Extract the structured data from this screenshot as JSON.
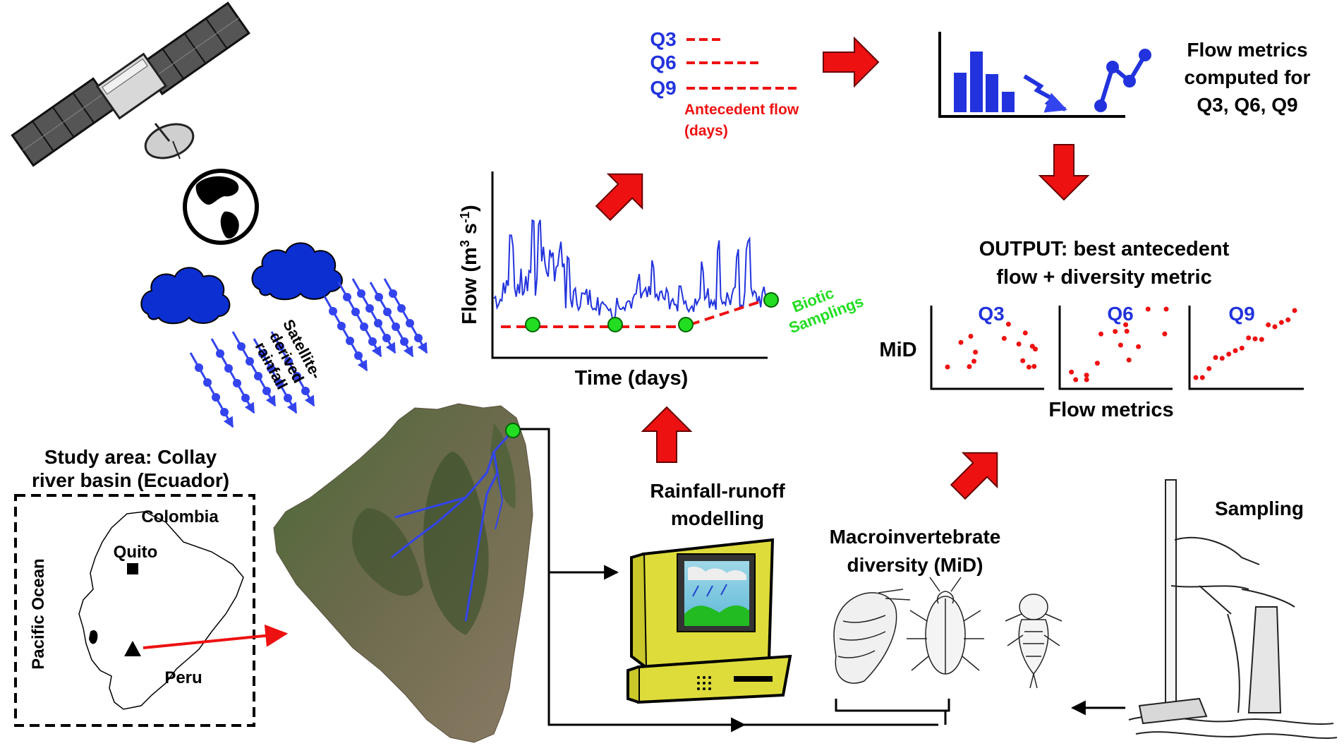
{
  "colors": {
    "red": "#ee1111",
    "blue": "#2233dd",
    "green": "#22dd22",
    "black": "#000000",
    "cloud": "#0b2fd1"
  },
  "satellite": {
    "rainfall_label_lines": [
      "Satellite-",
      "derived",
      "rainfall"
    ]
  },
  "study_area": {
    "title_line1": "Study area: Collay",
    "title_line2": "river basin (Ecuador)",
    "labels": {
      "colombia": "Colombia",
      "quito": "Quito",
      "pacific": "Pacific Ocean",
      "peru": "Peru"
    }
  },
  "rainfall_runoff": {
    "line1": "Rainfall-runoff",
    "line2": "modelling"
  },
  "hydrograph": {
    "y_label": "Flow (m",
    "y_unit_sup1": "3",
    "y_unit_mid": " s",
    "y_unit_sup2": "-1",
    "y_unit_end": ")",
    "x_label": "Time (days)",
    "biotic_line1": "Biotic",
    "biotic_line2": "Samplings"
  },
  "antecedent": {
    "items": [
      {
        "label": "Q3",
        "dashes": "---"
      },
      {
        "label": "Q6",
        "dashes": "------"
      },
      {
        "label": "Q9",
        "dashes": "---------"
      }
    ],
    "caption_line1": "Antecedent flow",
    "caption_line2": "(days)"
  },
  "flow_metrics": {
    "line1": "Flow metrics",
    "line2": "computed for",
    "line3": "Q3, Q6, Q9"
  },
  "output": {
    "line1": "OUTPUT: best antecedent",
    "line2": "flow + diversity metric",
    "y_label": "MiD",
    "x_label": "Flow metrics",
    "panels": [
      "Q3",
      "Q6",
      "Q9"
    ]
  },
  "macro": {
    "line1": "Macroinvertebrate",
    "line2": "diversity (MiD)"
  },
  "sampling": {
    "label": "Sampling"
  }
}
